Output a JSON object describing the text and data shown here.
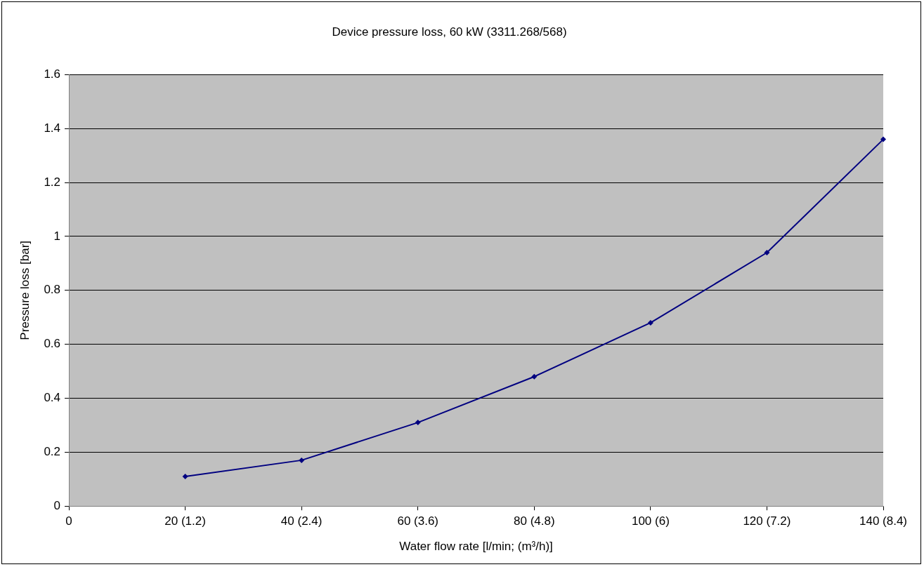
{
  "chart_data": {
    "type": "line",
    "title": "Device pressure loss, 60 kW (3311.268/568)",
    "xlabel": "Water flow rate [l/min; (m³/h)]",
    "ylabel": "Pressure loss [bar]",
    "categories": [
      "0",
      "20 (1.2)",
      "40 (2.4)",
      "60 (3.6)",
      "80 (4.8)",
      "100 (6)",
      "120 (7.2)",
      "140 (8.4)"
    ],
    "series": [
      {
        "color": "#000080",
        "values": [
          null,
          0.11,
          0.17,
          0.31,
          0.48,
          0.68,
          0.94,
          1.36
        ]
      }
    ],
    "ylim": [
      0,
      1.6
    ],
    "yticks": [
      0,
      0.2,
      0.4,
      0.6,
      0.8,
      1,
      1.2,
      1.4,
      1.6
    ],
    "grid": "y",
    "legend": false,
    "marker": "diamond",
    "line_style": "solid"
  }
}
